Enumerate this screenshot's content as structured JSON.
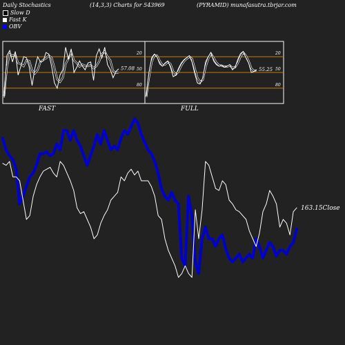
{
  "header": {
    "title": "Daily Stochastics",
    "params": "(14,3,3) Charts for 543969",
    "symbol": "(PYRAMID) munafasutra.tbrjar.com"
  },
  "legend": [
    {
      "label": "Slow  D",
      "color": "#000000"
    },
    {
      "label": "Fast  K",
      "color": "#ffffff"
    },
    {
      "label": "OBV",
      "color": "#0000ff"
    }
  ],
  "panels": {
    "fast_label": "FAST",
    "full_label": "FULL"
  },
  "colors": {
    "background": "#222222",
    "panel_background": "#222222",
    "reference_lines": "#cc7a00",
    "obv": "#0000cc",
    "price": "#ffffff"
  },
  "chart_data": [
    {
      "type": "line",
      "name": "FAST",
      "ylim": [
        0,
        100
      ],
      "reference_lines": [
        20,
        50,
        80
      ],
      "tick_labels": [
        "80",
        "50",
        "20"
      ],
      "last_value_label": "57.08",
      "series": [
        {
          "name": "Fast K",
          "color": "#ffffff",
          "values": [
            2,
            82,
            92,
            70,
            90,
            45,
            62,
            80,
            78,
            60,
            25,
            58,
            80,
            70,
            72,
            88,
            85,
            62,
            30,
            20,
            45,
            55,
            98,
            75,
            95,
            50,
            60,
            72,
            62,
            55,
            68,
            70,
            35,
            82,
            95,
            78,
            98,
            65,
            55,
            40,
            52,
            57
          ]
        },
        {
          "name": "Slow D",
          "color": "#000000",
          "values": [
            5,
            60,
            85,
            82,
            84,
            68,
            66,
            62,
            73,
            72,
            54,
            48,
            55,
            70,
            74,
            77,
            82,
            78,
            59,
            37,
            32,
            40,
            66,
            76,
            89,
            73,
            68,
            61,
            65,
            63,
            62,
            64,
            58,
            62,
            71,
            85,
            90,
            80,
            73,
            53,
            49,
            50
          ]
        }
      ]
    },
    {
      "type": "line",
      "name": "FULL",
      "ylim": [
        0,
        100
      ],
      "reference_lines": [
        20,
        50,
        80
      ],
      "tick_labels": [
        "80",
        "50",
        "20"
      ],
      "last_value_label": "55.25",
      "series": [
        {
          "name": "Fast K",
          "color": "#ffffff",
          "values": [
            5,
            50,
            78,
            85,
            80,
            66,
            62,
            68,
            72,
            60,
            42,
            45,
            58,
            68,
            74,
            78,
            82,
            70,
            48,
            30,
            28,
            40,
            70,
            80,
            88,
            72,
            65,
            62,
            64,
            60,
            62,
            65,
            55,
            60,
            75,
            86,
            90,
            78,
            68,
            50,
            52,
            55
          ]
        },
        {
          "name": "Slow D",
          "color": "#000000",
          "values": [
            3,
            40,
            70,
            82,
            82,
            72,
            64,
            65,
            70,
            66,
            52,
            46,
            52,
            63,
            71,
            76,
            80,
            76,
            58,
            40,
            32,
            36,
            60,
            76,
            86,
            78,
            69,
            64,
            63,
            61,
            61,
            63,
            59,
            60,
            68,
            80,
            88,
            82,
            72,
            58,
            53,
            54
          ]
        }
      ]
    },
    {
      "type": "line",
      "name": "Price / OBV",
      "last_value_label": "163.15Close",
      "series": [
        {
          "name": "OBV",
          "color": "#0000cc",
          "values": [
            82,
            76,
            73,
            71,
            66,
            48,
            52,
            57,
            62,
            64,
            68,
            74,
            74,
            75,
            73,
            74,
            79,
            76,
            86,
            86,
            81,
            86,
            81,
            78,
            73,
            68,
            73,
            78,
            84,
            79,
            86,
            81,
            76,
            78,
            76,
            82,
            86,
            84,
            88,
            92,
            90,
            84,
            80,
            76,
            74,
            70,
            64,
            56,
            52,
            50,
            54,
            50,
            48,
            20,
            16,
            52,
            42,
            18,
            12,
            30,
            36,
            30,
            30,
            26,
            30,
            32,
            25,
            20,
            18,
            20,
            22,
            18,
            20,
            22,
            20,
            30,
            26,
            20,
            24,
            28,
            26,
            21,
            24,
            24,
            22,
            26,
            28,
            35
          ]
        },
        {
          "name": "Close",
          "color": "#ffffff",
          "values": [
            69,
            68,
            70,
            62,
            62,
            60,
            50,
            40,
            42,
            52,
            58,
            62,
            65,
            66,
            67,
            64,
            62,
            70,
            68,
            64,
            60,
            55,
            46,
            43,
            44,
            40,
            36,
            30,
            32,
            38,
            42,
            45,
            50,
            52,
            54,
            62,
            60,
            64,
            66,
            63,
            65,
            60,
            60,
            60,
            57,
            52,
            42,
            40,
            30,
            24,
            20,
            16,
            10,
            12,
            16,
            12,
            10,
            45,
            30,
            45,
            70,
            68,
            62,
            56,
            55,
            60,
            58,
            50,
            48,
            45,
            44,
            42,
            40,
            34,
            30,
            26,
            33,
            44,
            48,
            55,
            52,
            48,
            36,
            40,
            38,
            32,
            44,
            46
          ]
        }
      ]
    }
  ]
}
